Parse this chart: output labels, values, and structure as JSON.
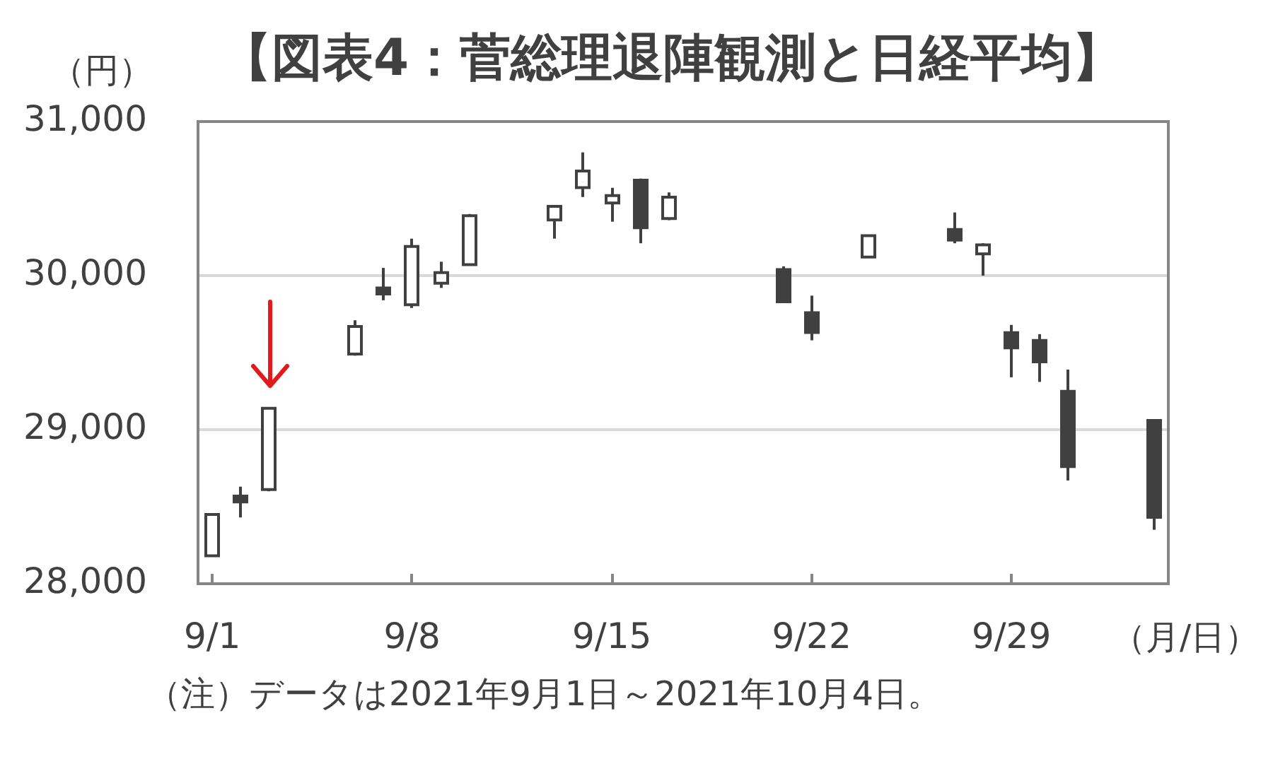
{
  "chart_data": {
    "type": "candlestick",
    "title": "【図表4：菅総理退陣観測と日経平均】",
    "ylabel": "（円）",
    "xlabel": "（月/日）",
    "annotations": [
      "（注）データは2021年9月1日～2021年10月4日。"
    ],
    "x": [
      "2021-09-01",
      "2021-09-02",
      "2021-09-03",
      "2021-09-06",
      "2021-09-07",
      "2021-09-08",
      "2021-09-09",
      "2021-09-10",
      "2021-09-13",
      "2021-09-14",
      "2021-09-15",
      "2021-09-16",
      "2021-09-17",
      "2021-09-21",
      "2021-09-22",
      "2021-09-24",
      "2021-09-27",
      "2021-09-28",
      "2021-09-29",
      "2021-09-30",
      "2021-10-01",
      "2021-10-04"
    ],
    "ohlc": [
      [
        28190,
        28450,
        28180,
        28440
      ],
      [
        28560,
        28630,
        28430,
        28540
      ],
      [
        28620,
        29140,
        28600,
        29130
      ],
      [
        29500,
        29710,
        29480,
        29660
      ],
      [
        29910,
        30050,
        29840,
        29890
      ],
      [
        29820,
        30240,
        29790,
        30180
      ],
      [
        29960,
        30090,
        29920,
        30010
      ],
      [
        30080,
        30400,
        30080,
        30380
      ],
      [
        30370,
        30450,
        30240,
        30440
      ],
      [
        30580,
        30800,
        30510,
        30670
      ],
      [
        30480,
        30570,
        30350,
        30510
      ],
      [
        30610,
        30630,
        30210,
        30320
      ],
      [
        30380,
        30540,
        30360,
        30500
      ],
      [
        30030,
        30060,
        29830,
        29840
      ],
      [
        29750,
        29870,
        29580,
        29640
      ],
      [
        30130,
        30260,
        30120,
        30250
      ],
      [
        30290,
        30410,
        30210,
        30240
      ],
      [
        30150,
        30210,
        30000,
        30190
      ],
      [
        29620,
        29680,
        29340,
        29540
      ],
      [
        29570,
        29620,
        29310,
        29450
      ],
      [
        29240,
        29390,
        28670,
        28770
      ],
      [
        29050,
        29060,
        28350,
        28440
      ]
    ],
    "color": "#404040",
    "xlim": [
      "2021-08-31T12:00",
      "2021-10-04T12:00"
    ],
    "xticks": [
      {
        "value": "2021-09-01",
        "label": "9/1"
      },
      {
        "value": "2021-09-08",
        "label": "9/8"
      },
      {
        "value": "2021-09-15",
        "label": "9/15"
      },
      {
        "value": "2021-09-22",
        "label": "9/22"
      },
      {
        "value": "2021-09-29",
        "label": "9/29"
      }
    ],
    "ylim": [
      28000,
      31000
    ],
    "yticks": [
      {
        "value": 28000,
        "label": "28,000"
      },
      {
        "value": 29000,
        "label": "29,000"
      },
      {
        "value": 30000,
        "label": "30,000"
      },
      {
        "value": 31000,
        "label": "31,000"
      }
    ],
    "grid": "y"
  }
}
